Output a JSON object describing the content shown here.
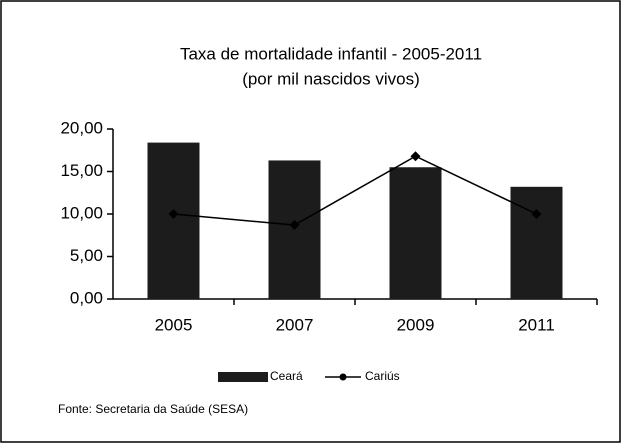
{
  "chart_data": {
    "type": "bar",
    "title": "Taxa de mortalidade infantil - 2005-2011",
    "subtitle": "(por mil nascidos vivos)",
    "categories": [
      "2005",
      "2007",
      "2009",
      "2011"
    ],
    "series": [
      {
        "name": "Ceará",
        "type": "bar",
        "color": "#1c1c1c",
        "values": [
          18.4,
          16.3,
          15.5,
          13.2
        ]
      },
      {
        "name": "Cariús",
        "type": "line",
        "color": "#000000",
        "values": [
          10.0,
          8.7,
          16.8,
          10.0
        ]
      }
    ],
    "ylim": [
      0,
      20
    ],
    "yticks": [
      {
        "value": 0,
        "label": "0,00"
      },
      {
        "value": 5,
        "label": "5,00"
      },
      {
        "value": 10,
        "label": "10,00"
      },
      {
        "value": 15,
        "label": "15,00"
      },
      {
        "value": 20,
        "label": "20,00"
      }
    ],
    "legend": "bottom",
    "source": "Fonte: Secretaria da Saúde (SESA)"
  }
}
